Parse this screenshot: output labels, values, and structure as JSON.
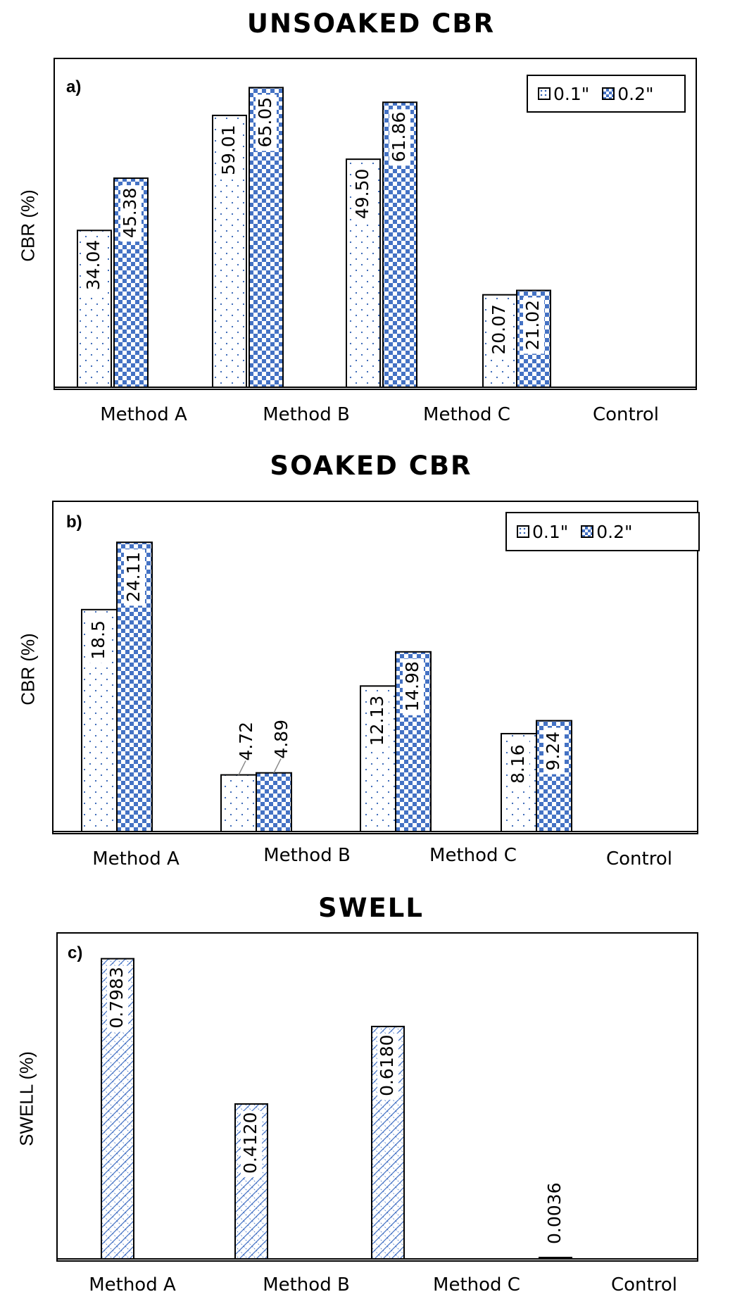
{
  "chart_data": [
    {
      "type": "bar",
      "title": "UNSOAKED CBR",
      "panel_label": "a)",
      "ylabel": "CBR (%)",
      "categories": [
        "Method A",
        "Method B",
        "Method C",
        "Control"
      ],
      "ylim": [
        0,
        70
      ],
      "legend_position": "top-right",
      "series": [
        {
          "name": "0.1\"",
          "pattern": "dots",
          "values": [
            34.04,
            59.01,
            49.5,
            20.07
          ],
          "labels": [
            "34.04",
            "59.01",
            "49.50",
            "20.07"
          ]
        },
        {
          "name": "0.2\"",
          "pattern": "checker",
          "values": [
            45.38,
            65.05,
            61.86,
            21.02
          ],
          "labels": [
            "45.38",
            "65.05",
            "61.86",
            "21.02"
          ]
        }
      ]
    },
    {
      "type": "bar",
      "title": "SOAKED CBR",
      "panel_label": "b)",
      "ylabel": "CBR (%)",
      "categories": [
        "Method A",
        "Method B",
        "Method C",
        "Control"
      ],
      "ylim": [
        0,
        27
      ],
      "legend_position": "top-right",
      "series": [
        {
          "name": "0.1\"",
          "pattern": "dots",
          "values": [
            18.5,
            4.72,
            12.13,
            8.16
          ],
          "labels": [
            "18.5",
            "4.72",
            "12.13",
            "8.16"
          ]
        },
        {
          "name": "0.2\"",
          "pattern": "checker",
          "values": [
            24.11,
            4.89,
            14.98,
            9.24
          ],
          "labels": [
            "24.11",
            "4.89",
            "14.98",
            "9.24"
          ]
        }
      ]
    },
    {
      "type": "bar",
      "title": "SWELL",
      "panel_label": "c)",
      "ylabel": "SWELL (%)",
      "categories": [
        "Method A",
        "Method B",
        "Method C",
        "Control"
      ],
      "ylim": [
        0,
        0.85
      ],
      "series": [
        {
          "pattern": "crosshatch",
          "values": [
            0.7983,
            0.412,
            0.618,
            0.0036
          ],
          "labels": [
            "0.7983",
            "0.4120",
            "0.6180",
            "0.0036"
          ]
        }
      ]
    }
  ],
  "colors": {
    "accent": "#4472c4",
    "dot": "#2f5fb3",
    "frame": "#000000"
  }
}
